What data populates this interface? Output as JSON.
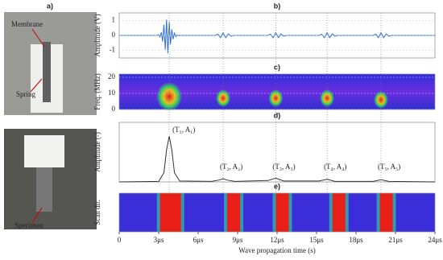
{
  "photo": {
    "label": "a)",
    "labels": [
      "Membrane",
      "Spring",
      "Specimen"
    ]
  },
  "chart_data": [
    {
      "type": "line",
      "label": "b)",
      "ylabel": "Amplitude (V)",
      "color": "#2f6fd6",
      "ylim": [
        -1.5,
        1.5
      ],
      "yticks": [
        -1,
        0,
        1
      ],
      "x": [
        0,
        2.9,
        3.0,
        3.1,
        3.2,
        3.3,
        3.4,
        3.5,
        3.6,
        3.7,
        3.8,
        3.9,
        4.0,
        4.1,
        4.2,
        4.3,
        4.4,
        4.5,
        4.6,
        4.8,
        7.3,
        7.5,
        7.7,
        7.9,
        8.1,
        8.3,
        8.5,
        8.7,
        11.3,
        11.5,
        11.7,
        11.9,
        12.1,
        12.3,
        12.5,
        12.7,
        15.2,
        15.4,
        15.6,
        15.8,
        16.0,
        16.2,
        16.4,
        16.6,
        19.3,
        19.5,
        19.7,
        19.9,
        20.1,
        20.3,
        20.5,
        20.7,
        24
      ],
      "values": [
        0,
        0,
        0.05,
        -0.1,
        0.2,
        -0.4,
        0.7,
        -0.95,
        1.05,
        -1.2,
        0.9,
        -0.6,
        0.4,
        -0.25,
        0.15,
        -0.08,
        0.04,
        -0.02,
        0,
        0,
        0,
        0.08,
        -0.15,
        0.18,
        -0.15,
        0.1,
        -0.05,
        0,
        0,
        0.08,
        -0.15,
        0.18,
        -0.15,
        0.1,
        -0.05,
        0,
        0,
        0.08,
        -0.15,
        0.18,
        -0.15,
        0.1,
        -0.05,
        0,
        0,
        0.08,
        -0.15,
        0.18,
        -0.15,
        0.1,
        -0.05,
        0,
        0
      ]
    },
    {
      "type": "heatmap",
      "label": "c)",
      "ylabel": "Freq. (MHz)",
      "ylim": [
        0,
        22
      ],
      "yticks": [
        0,
        10,
        20
      ],
      "x": [
        3.8,
        7.9,
        11.9,
        15.8,
        19.9
      ],
      "values": [
        8,
        7,
        7,
        7,
        6
      ]
    },
    {
      "type": "line",
      "label": "d)",
      "ylabel": "Amplitude (-)",
      "color": "#333333",
      "ylim": [
        0,
        1.3
      ],
      "x": [
        0,
        3.0,
        3.4,
        3.6,
        3.8,
        4.0,
        4.2,
        4.6,
        7.0,
        7.6,
        7.9,
        8.2,
        8.8,
        11.3,
        11.9,
        12.5,
        15.2,
        15.8,
        16.4,
        19.3,
        19.9,
        20.5,
        24
      ],
      "values": [
        0,
        0.01,
        0.2,
        0.7,
        1,
        0.7,
        0.2,
        0.02,
        0.01,
        0.04,
        0.07,
        0.04,
        0.01,
        0.03,
        0.08,
        0.02,
        0.02,
        0.06,
        0.01,
        0.01,
        0.05,
        0.01,
        0
      ],
      "annotations": [
        {
          "x": 3.8,
          "text": "(T₁, A₁)"
        },
        {
          "x": 7.9,
          "text": "(T₂, A₂)"
        },
        {
          "x": 11.9,
          "text": "(T₃, A₃)"
        },
        {
          "x": 15.8,
          "text": "(T₄, A₄)"
        },
        {
          "x": 19.9,
          "text": "(T₅, A₅)"
        }
      ]
    },
    {
      "type": "scan",
      "label": "e)",
      "ylabel": "Scan dir.",
      "x": [
        3.9,
        8.7,
        12.4,
        16.7,
        20.3
      ],
      "xlim": [
        0,
        24
      ],
      "xlabel": "Wave propagation time (s)",
      "xticks": [
        0,
        {
          "value": 3,
          "label": "3μs"
        },
        {
          "value": 6,
          "label": "6μs"
        },
        {
          "value": 9,
          "label": "9μs"
        },
        {
          "value": 12,
          "label": "12μs"
        },
        {
          "value": 15,
          "label": "15μs"
        },
        {
          "value": 18,
          "label": "18μs"
        },
        {
          "value": 21,
          "label": "21μs"
        },
        {
          "value": 24,
          "label": "24μs"
        }
      ]
    }
  ]
}
